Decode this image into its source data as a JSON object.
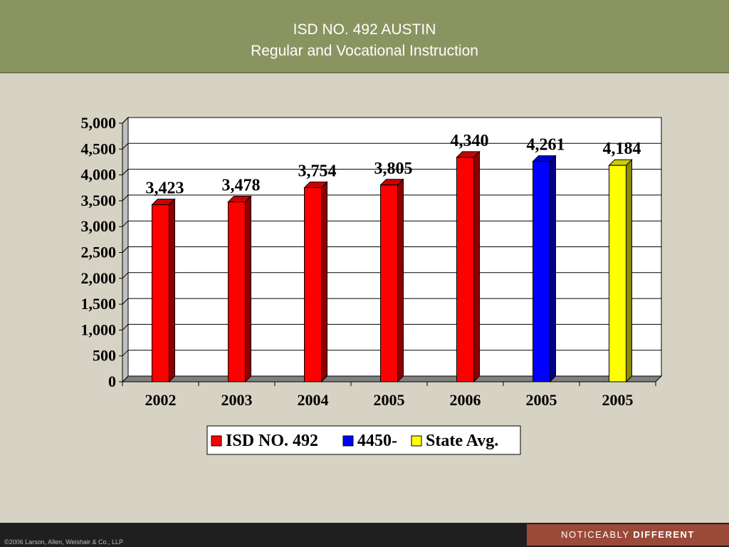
{
  "header": {
    "title_line1": "ISD NO. 492 AUSTIN",
    "title_line2": "Regular and Vocational Instruction"
  },
  "chart_data": {
    "type": "bar",
    "categories": [
      "2002",
      "2003",
      "2004",
      "2005",
      "2006",
      "2005",
      "2005"
    ],
    "series": [
      {
        "name": "ISD NO. 492",
        "color": "#ff0000",
        "values": [
          3423,
          3478,
          3754,
          3805,
          4340,
          null,
          null
        ]
      },
      {
        "name": "4450-",
        "color": "#0000ff",
        "values": [
          null,
          null,
          null,
          null,
          null,
          4261,
          null
        ]
      },
      {
        "name": "State Avg.",
        "color": "#ffff00",
        "values": [
          null,
          null,
          null,
          null,
          null,
          null,
          4184
        ]
      }
    ],
    "data_labels": [
      "3,423",
      "3,478",
      "3,754",
      "3,805",
      "4,340",
      "4,261",
      "4,184"
    ],
    "ylim": [
      0,
      5000
    ],
    "yticks": [
      "0",
      "500",
      "1,000",
      "1,500",
      "2,000",
      "2,500",
      "3,000",
      "3,500",
      "4,000",
      "4,500",
      "5,000"
    ],
    "grid": true,
    "legend_position": "bottom"
  },
  "footer": {
    "copyright": "©2006 Larson, Allen, Weishair & Co., LLP",
    "tagline_normal": "NOTICEABLY ",
    "tagline_bold": "DIFFERENT"
  }
}
